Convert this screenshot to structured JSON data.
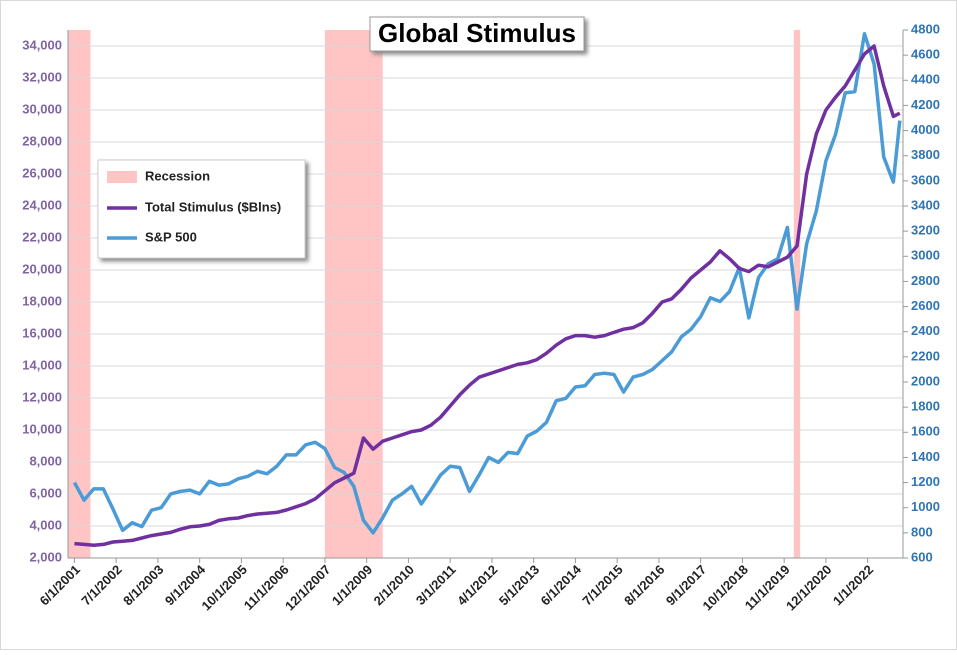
{
  "chart_data": {
    "type": "line",
    "title": "Global Stimulus",
    "x": [
      "6/1/2001",
      "9/1/2001",
      "12/1/2001",
      "3/1/2002",
      "6/1/2002",
      "9/1/2002",
      "12/1/2002",
      "3/1/2003",
      "6/1/2003",
      "9/1/2003",
      "12/1/2003",
      "3/1/2004",
      "6/1/2004",
      "9/1/2004",
      "12/1/2004",
      "3/1/2005",
      "6/1/2005",
      "9/1/2005",
      "12/1/2005",
      "3/1/2006",
      "6/1/2006",
      "9/1/2006",
      "12/1/2006",
      "3/1/2007",
      "6/1/2007",
      "9/1/2007",
      "12/1/2007",
      "3/1/2008",
      "6/1/2008",
      "9/1/2008",
      "12/1/2008",
      "3/1/2009",
      "6/1/2009",
      "9/1/2009",
      "12/1/2009",
      "3/1/2010",
      "6/1/2010",
      "9/1/2010",
      "12/1/2010",
      "3/1/2011",
      "6/1/2011",
      "9/1/2011",
      "12/1/2011",
      "3/1/2012",
      "6/1/2012",
      "9/1/2012",
      "12/1/2012",
      "3/1/2013",
      "6/1/2013",
      "9/1/2013",
      "12/1/2013",
      "3/1/2014",
      "6/1/2014",
      "9/1/2014",
      "12/1/2014",
      "3/1/2015",
      "6/1/2015",
      "9/1/2015",
      "12/1/2015",
      "3/1/2016",
      "6/1/2016",
      "9/1/2016",
      "12/1/2016",
      "3/1/2017",
      "6/1/2017",
      "9/1/2017",
      "12/1/2017",
      "3/1/2018",
      "6/1/2018",
      "9/1/2018",
      "12/1/2018",
      "3/1/2019",
      "6/1/2019",
      "9/1/2019",
      "12/1/2019",
      "3/1/2020",
      "6/1/2020",
      "9/1/2020",
      "12/1/2020",
      "3/1/2021",
      "6/1/2021",
      "9/1/2021",
      "12/1/2021",
      "3/1/2022",
      "6/1/2022",
      "9/1/2022",
      "11/1/2022"
    ],
    "xlim": [
      "4/1/2001",
      "12/1/2022"
    ],
    "xticks": [
      "6/1/2001",
      "7/1/2002",
      "8/1/2003",
      "9/1/2004",
      "10/1/2005",
      "11/1/2006",
      "12/1/2007",
      "1/1/2009",
      "2/1/2010",
      "3/1/2011",
      "4/1/2012",
      "5/1/2013",
      "6/1/2014",
      "7/1/2015",
      "8/1/2016",
      "9/1/2017",
      "10/1/2018",
      "11/1/2019",
      "12/1/2020",
      "1/1/2022"
    ],
    "ylim": [
      2000,
      35000
    ],
    "yticks": [
      {
        "value": 2000,
        "label": "2,000"
      },
      {
        "value": 4000,
        "label": "4,000"
      },
      {
        "value": 6000,
        "label": "6,000"
      },
      {
        "value": 8000,
        "label": "8,000"
      },
      {
        "value": 10000,
        "label": "10,000"
      },
      {
        "value": 12000,
        "label": "12,000"
      },
      {
        "value": 14000,
        "label": "14,000"
      },
      {
        "value": 16000,
        "label": "16,000"
      },
      {
        "value": 18000,
        "label": "18,000"
      },
      {
        "value": 20000,
        "label": "20,000"
      },
      {
        "value": 22000,
        "label": "22,000"
      },
      {
        "value": 24000,
        "label": "24,000"
      },
      {
        "value": 26000,
        "label": "26,000"
      },
      {
        "value": 28000,
        "label": "28,000"
      },
      {
        "value": 30000,
        "label": "30,000"
      },
      {
        "value": 32000,
        "label": "32,000"
      },
      {
        "value": 34000,
        "label": "34,000"
      }
    ],
    "y2lim": [
      600,
      4800
    ],
    "y2ticks": [
      600,
      800,
      1000,
      1200,
      1400,
      1600,
      1800,
      2000,
      2200,
      2400,
      2600,
      2800,
      3000,
      3200,
      3400,
      3600,
      3800,
      4000,
      4200,
      4400,
      4600,
      4800
    ],
    "grid": true,
    "recession": {
      "name": "Recession",
      "color": "#ffc4c4",
      "spans": [
        [
          "3/1/2001",
          "11/1/2001"
        ],
        [
          "12/1/2007",
          "6/1/2009"
        ],
        [
          "2/1/2020",
          "4/1/2020"
        ]
      ]
    },
    "series": [
      {
        "name": "Total Stimulus ($Blns)",
        "color": "#7030a0",
        "axis": "y",
        "values": [
          2900,
          2850,
          2800,
          2850,
          3000,
          3050,
          3100,
          3250,
          3400,
          3500,
          3600,
          3800,
          3950,
          4000,
          4100,
          4350,
          4450,
          4500,
          4650,
          4750,
          4800,
          4850,
          5000,
          5200,
          5400,
          5700,
          6200,
          6700,
          7000,
          7300,
          9500,
          8800,
          9300,
          9500,
          9700,
          9900,
          10000,
          10300,
          10800,
          11500,
          12200,
          12800,
          13300,
          13500,
          13700,
          13900,
          14100,
          14200,
          14400,
          14800,
          15300,
          15700,
          15900,
          15900,
          15800,
          15900,
          16100,
          16300,
          16400,
          16700,
          17300,
          18000,
          18200,
          18800,
          19500,
          20000,
          20500,
          21200,
          20700,
          20100,
          19900,
          20300,
          20200,
          20500,
          20800,
          21500,
          26000,
          28500,
          30000,
          30800,
          31500,
          32500,
          33500,
          34000,
          31500,
          29600,
          29800
        ]
      },
      {
        "name": "S&P 500",
        "color": "#4a9bd6",
        "axis": "y2",
        "values": [
          1200,
          1060,
          1150,
          1150,
          990,
          820,
          880,
          850,
          980,
          1000,
          1110,
          1130,
          1140,
          1110,
          1210,
          1180,
          1190,
          1230,
          1250,
          1290,
          1270,
          1330,
          1420,
          1420,
          1500,
          1520,
          1470,
          1320,
          1280,
          1170,
          900,
          800,
          920,
          1060,
          1110,
          1170,
          1030,
          1140,
          1260,
          1330,
          1320,
          1130,
          1260,
          1400,
          1360,
          1440,
          1430,
          1570,
          1610,
          1680,
          1850,
          1870,
          1960,
          1970,
          2060,
          2070,
          2060,
          1920,
          2040,
          2060,
          2100,
          2170,
          2240,
          2360,
          2420,
          2520,
          2670,
          2640,
          2720,
          2910,
          2510,
          2830,
          2940,
          2980,
          3230,
          2580,
          3100,
          3360,
          3760,
          3970,
          4300,
          4310,
          4770,
          4530,
          3790,
          3590,
          4080
        ]
      }
    ]
  }
}
